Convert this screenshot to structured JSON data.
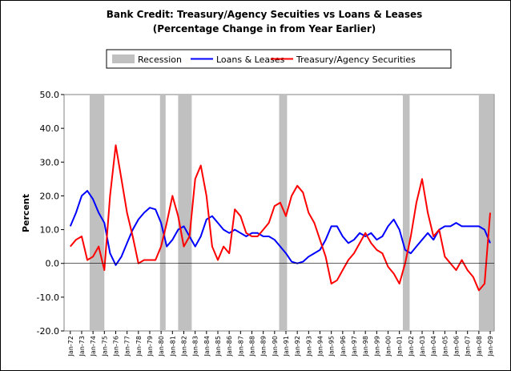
{
  "chart_data": {
    "type": "line",
    "title": "Bank Credit: Treasury/Agency Secuities vs Loans & Leases",
    "subtitle": "(Percentage Change in from Year Earlier)",
    "y_label": "Percent",
    "ylim": [
      -20,
      50
    ],
    "yticks": [
      {
        "value": -20,
        "label": "-20.0"
      },
      {
        "value": -10,
        "label": "-10.0"
      },
      {
        "value": 0,
        "label": "0.0"
      },
      {
        "value": 10,
        "label": "10.0"
      },
      {
        "value": 20,
        "label": "20.0"
      },
      {
        "value": 30,
        "label": "30.0"
      },
      {
        "value": 40,
        "label": "40.0"
      },
      {
        "value": 50,
        "label": "50.0"
      }
    ],
    "xlim": [
      1971.45,
      2009.35
    ],
    "xticks": [
      {
        "value": 1972,
        "label": "Jan-72"
      },
      {
        "value": 1973,
        "label": "Jan-73"
      },
      {
        "value": 1974,
        "label": "Jan-74"
      },
      {
        "value": 1975,
        "label": "Jan-75"
      },
      {
        "value": 1976,
        "label": "Jan-76"
      },
      {
        "value": 1977,
        "label": "Jan-77"
      },
      {
        "value": 1978,
        "label": "Jan-78"
      },
      {
        "value": 1979,
        "label": "Jan-79"
      },
      {
        "value": 1980,
        "label": "Jan-80"
      },
      {
        "value": 1981,
        "label": "Jan-81"
      },
      {
        "value": 1982,
        "label": "Jan-82"
      },
      {
        "value": 1983,
        "label": "Jan-83"
      },
      {
        "value": 1984,
        "label": "Jan-84"
      },
      {
        "value": 1985,
        "label": "Jan-85"
      },
      {
        "value": 1986,
        "label": "Jan-86"
      },
      {
        "value": 1987,
        "label": "Jan-87"
      },
      {
        "value": 1988,
        "label": "Jan-88"
      },
      {
        "value": 1989,
        "label": "Jan-89"
      },
      {
        "value": 1990,
        "label": "Jan-90"
      },
      {
        "value": 1991,
        "label": "Jan-91"
      },
      {
        "value": 1992,
        "label": "Jan-92"
      },
      {
        "value": 1993,
        "label": "Jan-93"
      },
      {
        "value": 1994,
        "label": "Jan-94"
      },
      {
        "value": 1995,
        "label": "Jan-95"
      },
      {
        "value": 1996,
        "label": "Jan-96"
      },
      {
        "value": 1997,
        "label": "Jan-97"
      },
      {
        "value": 1998,
        "label": "Jan-98"
      },
      {
        "value": 1999,
        "label": "Jan-99"
      },
      {
        "value": 2000,
        "label": "Jan-00"
      },
      {
        "value": 2001,
        "label": "Jan-01"
      },
      {
        "value": 2002,
        "label": "Jan-02"
      },
      {
        "value": 2003,
        "label": "Jan-03"
      },
      {
        "value": 2004,
        "label": "Jan-04"
      },
      {
        "value": 2005,
        "label": "Jan-05"
      },
      {
        "value": 2006,
        "label": "Jan-06"
      },
      {
        "value": 2007,
        "label": "Jan-07"
      },
      {
        "value": 2008,
        "label": "Jan-08"
      },
      {
        "value": 2009,
        "label": "Jan-09"
      }
    ],
    "recessions": {
      "name": "Recession",
      "color": "#c0c0c0",
      "periods": [
        [
          1973.7,
          1975.0
        ],
        [
          1979.9,
          1980.4
        ],
        [
          1981.5,
          1982.7
        ],
        [
          1990.4,
          1991.1
        ],
        [
          2001.3,
          2001.9
        ],
        [
          2008.0,
          2009.3
        ]
      ]
    },
    "x": [
      1972.0,
      1972.5,
      1973.0,
      1973.5,
      1974.0,
      1974.5,
      1975.0,
      1975.5,
      1976.0,
      1976.5,
      1977.0,
      1977.5,
      1978.0,
      1978.5,
      1979.0,
      1979.5,
      1980.0,
      1980.5,
      1981.0,
      1981.5,
      1982.0,
      1982.5,
      1983.0,
      1983.5,
      1984.0,
      1984.5,
      1985.0,
      1985.5,
      1986.0,
      1986.5,
      1987.0,
      1987.5,
      1988.0,
      1988.5,
      1989.0,
      1989.5,
      1990.0,
      1990.5,
      1991.0,
      1991.5,
      1992.0,
      1992.5,
      1993.0,
      1993.5,
      1994.0,
      1994.5,
      1995.0,
      1995.5,
      1996.0,
      1996.5,
      1997.0,
      1997.5,
      1998.0,
      1998.5,
      1999.0,
      1999.5,
      2000.0,
      2000.5,
      2001.0,
      2001.5,
      2002.0,
      2002.5,
      2003.0,
      2003.5,
      2004.0,
      2004.5,
      2005.0,
      2005.5,
      2006.0,
      2006.5,
      2007.0,
      2007.5,
      2008.0,
      2008.5,
      2009.0
    ],
    "series": [
      {
        "name": "Loans & Leases",
        "color": "#0000ff",
        "values": [
          11,
          15,
          20,
          21.5,
          19,
          15,
          12,
          3,
          -0.5,
          2,
          6,
          10,
          13,
          15,
          16.5,
          16,
          12,
          5,
          7,
          10,
          11,
          8,
          5,
          8,
          13,
          14,
          12,
          10,
          9,
          10,
          9,
          8,
          9,
          9,
          8,
          8,
          7,
          5,
          3,
          0.5,
          0,
          0.5,
          2,
          3,
          4,
          7,
          11,
          11,
          8,
          6,
          7,
          9,
          8,
          9,
          7,
          8,
          11,
          13,
          10,
          4,
          3,
          5,
          7,
          9,
          7,
          10,
          11,
          11,
          12,
          11,
          11,
          11,
          11,
          10,
          6
        ]
      },
      {
        "name": "Treasury/Agency Securities",
        "color": "#ff0000",
        "values": [
          5,
          7,
          8,
          1,
          2,
          5,
          -2,
          20,
          35,
          25,
          15,
          8,
          0,
          1,
          1,
          1,
          5,
          12,
          20,
          14,
          5,
          8,
          25,
          29,
          20,
          5,
          1,
          5,
          3,
          16,
          14,
          9,
          8,
          8,
          10,
          12,
          17,
          18,
          14,
          20,
          23,
          21,
          15,
          12,
          7,
          2,
          -6,
          -5,
          -2,
          1,
          3,
          6,
          9,
          6,
          4,
          3,
          -1,
          -3,
          -6,
          0,
          8,
          18,
          25,
          15,
          8,
          10,
          2,
          0,
          -2,
          1,
          -2,
          -4,
          -8,
          -6,
          15
        ]
      }
    ]
  }
}
